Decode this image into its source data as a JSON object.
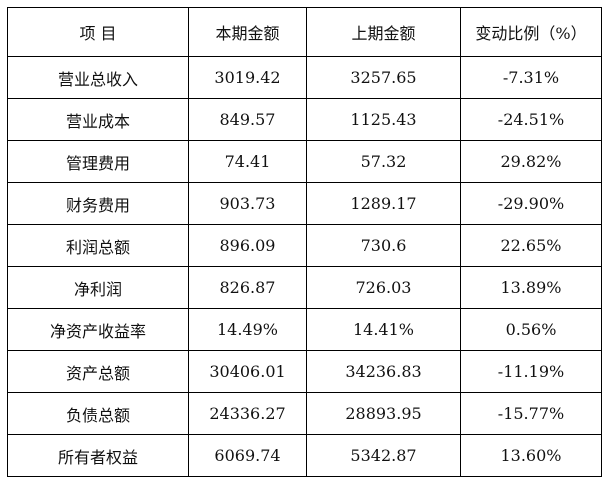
{
  "table": {
    "headers": [
      "项 目",
      "本期金额",
      "上期金额",
      "变动比例（%）"
    ],
    "rows": [
      [
        "营业总收入",
        "3019.42",
        "3257.65",
        "-7.31%"
      ],
      [
        "营业成本",
        "849.57",
        "1125.43",
        "-24.51%"
      ],
      [
        "管理费用",
        "74.41",
        "57.32",
        "29.82%"
      ],
      [
        "财务费用",
        "903.73",
        "1289.17",
        "-29.90%"
      ],
      [
        "利润总额",
        "896.09",
        "730.6",
        "22.65%"
      ],
      [
        "净利润",
        "826.87",
        "726.03",
        "13.89%"
      ],
      [
        "净资产收益率",
        "14.49%",
        "14.41%",
        "0.56%"
      ],
      [
        "资产总额",
        "30406.01",
        "34236.83",
        "-11.19%"
      ],
      [
        "负债总额",
        "24336.27",
        "28893.95",
        "-15.77%"
      ],
      [
        "所有者权益",
        "6069.74",
        "5342.87",
        "13.60%"
      ]
    ]
  }
}
